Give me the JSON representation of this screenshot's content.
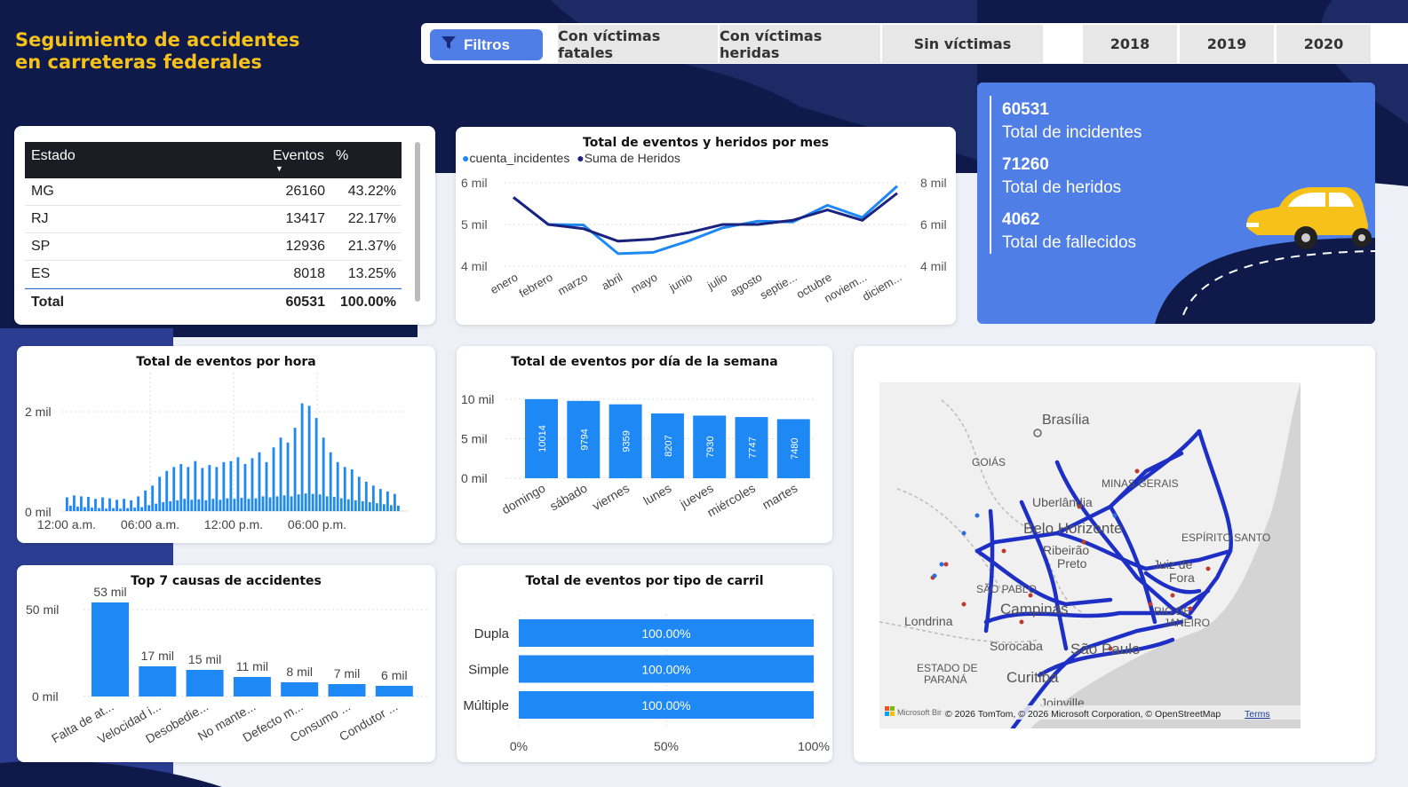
{
  "header": {
    "title_line1": "Seguimiento de accidentes",
    "title_line2": "en carreteras federales",
    "filter_label": "Filtros",
    "tabs": [
      "Con víctimas fatales",
      "Con víctimas heridas",
      "Sin víctimas"
    ],
    "years": [
      "2018",
      "2019",
      "2020"
    ]
  },
  "table": {
    "col_estado": "Estado",
    "col_eventos": "Eventos",
    "col_pct": "%",
    "rows": [
      {
        "estado": "MG",
        "eventos": "26160",
        "pct": "43.22%"
      },
      {
        "estado": "RJ",
        "eventos": "13417",
        "pct": "22.17%"
      },
      {
        "estado": "SP",
        "eventos": "12936",
        "pct": "21.37%"
      },
      {
        "estado": "ES",
        "eventos": "8018",
        "pct": "13.25%"
      }
    ],
    "total_label": "Total",
    "total_eventos": "60531",
    "total_pct": "100.00%"
  },
  "kpis": {
    "incidentes_value": "60531",
    "incidentes_label": "Total de incidentes",
    "heridos_value": "71260",
    "heridos_label": "Total de heridos",
    "fallecidos_value": "4062",
    "fallecidos_label": "Total de fallecidos"
  },
  "monthly": {
    "title": "Total de eventos y heridos por mes",
    "legend": [
      "cuenta_incidentes",
      "Suma de Heridos"
    ],
    "left_ticks": [
      "6 mil",
      "5 mil",
      "4 mil"
    ],
    "right_ticks": [
      "8 mil",
      "6 mil",
      "4 mil"
    ],
    "months": [
      "enero",
      "febrero",
      "marzo",
      "abril",
      "mayo",
      "junio",
      "julio",
      "agosto",
      "septie...",
      "octubre",
      "noviem...",
      "diciem..."
    ]
  },
  "hourly": {
    "title": "Total de eventos por hora",
    "y_ticks": [
      "2 mil",
      "0 mil"
    ],
    "x_ticks": [
      "12:00 a.m.",
      "06:00 a.m.",
      "12:00 p.m.",
      "06:00 p.m."
    ]
  },
  "weekday": {
    "title": "Total de eventos por día de la semana",
    "y_ticks": [
      "10 mil",
      "5 mil",
      "0 mil"
    ]
  },
  "causes": {
    "title": "Top 7 causas de accidentes",
    "y_ticks": [
      "50 mil",
      "0 mil"
    ],
    "value_labels": [
      "53 mil",
      "17 mil",
      "15 mil",
      "11 mil",
      "8 mil",
      "7 mil",
      "6 mil"
    ]
  },
  "lanes": {
    "title": "Total de eventos por tipo de carril",
    "x_ticks": [
      "0%",
      "50%",
      "100%"
    ]
  },
  "map": {
    "labels": [
      "Brasília",
      "GOIÁS",
      "MINAS GERAIS",
      "Uberlândia",
      "Belo Horizonte",
      "ESPÍRITO SANTO",
      "Ribeirão Preto",
      "Juiz de Fora",
      "SÃO PABLO",
      "Campinas",
      "RIO DE JANEIRO",
      "Londrina",
      "Sorocaba",
      "São Paulo",
      "ESTADO DE PARANÁ",
      "Curitiba",
      "Joinville"
    ],
    "attribution": "© 2026 TomTom, © 2026 Microsoft Corporation, © OpenStreetMap",
    "terms": "Terms",
    "bing": "Microsoft Bing"
  },
  "colors": {
    "accent_blue": "#1e88f5",
    "dark_blue": "#1a237e",
    "navy_bg": "#0f1a4a",
    "kpi_bg": "#4f7fe6",
    "title_yellow": "#f6c21a"
  },
  "chart_data": [
    {
      "type": "line",
      "title": "Total de eventos y heridos por mes",
      "x": [
        "enero",
        "febrero",
        "marzo",
        "abril",
        "mayo",
        "junio",
        "julio",
        "agosto",
        "septie...",
        "octubre",
        "noviem...",
        "diciem..."
      ],
      "series": [
        {
          "name": "cuenta_incidentes",
          "axis": "left",
          "values": [
            5650,
            5000,
            4990,
            4300,
            4330,
            4600,
            4920,
            5080,
            5060,
            5460,
            5170,
            5920
          ]
        },
        {
          "name": "Suma de Heridos",
          "axis": "right",
          "values": [
            7300,
            6000,
            5800,
            5200,
            5300,
            5600,
            6000,
            6000,
            6200,
            6700,
            6200,
            7500
          ]
        }
      ],
      "ylim_left": [
        4000,
        6000
      ],
      "ylim_right": [
        4000,
        8000
      ]
    },
    {
      "type": "bar",
      "title": "Total de eventos por hora",
      "x_ticks": [
        "12:00 a.m.",
        "06:00 a.m.",
        "12:00 p.m.",
        "06:00 p.m."
      ],
      "ylim": [
        0,
        2500
      ],
      "values": [
        280,
        110,
        320,
        90,
        300,
        80,
        290,
        70,
        250,
        60,
        280,
        50,
        260,
        60,
        230,
        50,
        250,
        60,
        220,
        70,
        300,
        80,
        420,
        120,
        520,
        150,
        700,
        180,
        820,
        200,
        900,
        220,
        960,
        250,
        900,
        230,
        1020,
        240,
        880,
        220,
        940,
        250,
        900,
        230,
        1000,
        260,
        1020,
        250,
        1100,
        270,
        960,
        250,
        1080,
        260,
        1200,
        300,
        1000,
        280,
        1300,
        300,
        1500,
        320,
        1400,
        300,
        1700,
        340,
        2200,
        360,
        2150,
        350,
        1900,
        340,
        1500,
        300,
        1200,
        290,
        1000,
        260,
        900,
        240,
        850,
        220,
        700,
        200,
        600,
        180,
        520,
        160,
        450,
        140,
        400,
        120,
        350,
        110
      ]
    },
    {
      "type": "bar",
      "title": "Total de eventos por día de la semana",
      "categories": [
        "domingo",
        "sábado",
        "viernes",
        "lunes",
        "jueves",
        "miércoles",
        "martes"
      ],
      "values": [
        10014,
        9794,
        9359,
        8207,
        7930,
        7747,
        7480
      ],
      "ylim": [
        0,
        10000
      ]
    },
    {
      "type": "bar",
      "title": "Top 7 causas de accidentes",
      "categories": [
        "Falta de at...",
        "Velocidad i...",
        "Desobedie...",
        "No mante...",
        "Defecto m...",
        "Consumo ...",
        "Condutor ..."
      ],
      "values": [
        53000,
        17000,
        15000,
        11000,
        8000,
        7000,
        6000
      ],
      "ylim": [
        0,
        55000
      ]
    },
    {
      "type": "bar",
      "title": "Total de eventos por tipo de carril",
      "categories": [
        "Dupla",
        "Simple",
        "Múltiple"
      ],
      "values": [
        100,
        100,
        100
      ],
      "value_labels": [
        "100.00%",
        "100.00%",
        "100.00%"
      ],
      "xlim": [
        0,
        100
      ]
    }
  ]
}
